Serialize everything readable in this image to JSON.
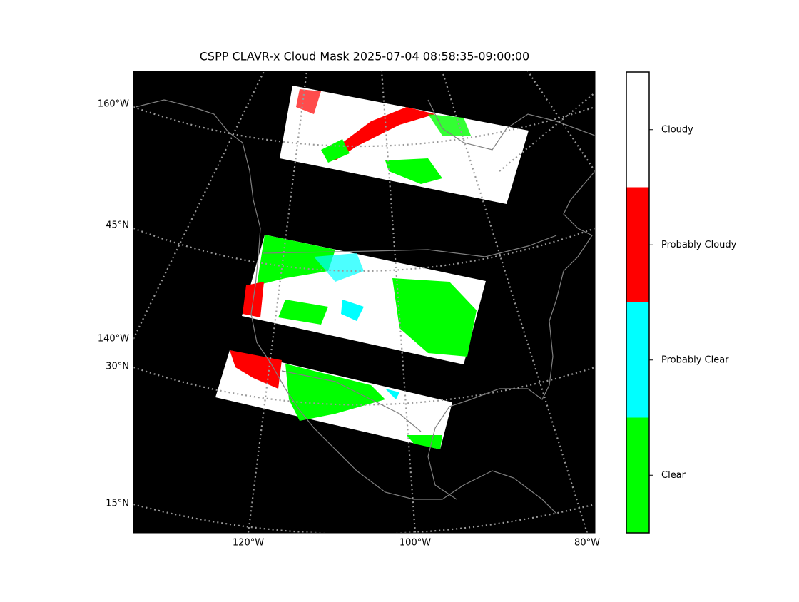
{
  "title": "CSPP CLAVR-x Cloud Mask 2025-07-04 08:58:35-09:00:00",
  "map": {
    "left_labels": [
      "160°W",
      "45°N",
      "140°W",
      "30°N",
      "15°N"
    ],
    "bottom_labels": [
      "120°W",
      "100°W",
      "80°W"
    ]
  },
  "colorbar": {
    "classes": [
      {
        "label": "Clear",
        "color": "#00ff00"
      },
      {
        "label": "Probably Clear",
        "color": "#00ffff"
      },
      {
        "label": "Probably Cloudy",
        "color": "#ff0000"
      },
      {
        "label": "Cloudy",
        "color": "#ffffff"
      }
    ]
  }
}
